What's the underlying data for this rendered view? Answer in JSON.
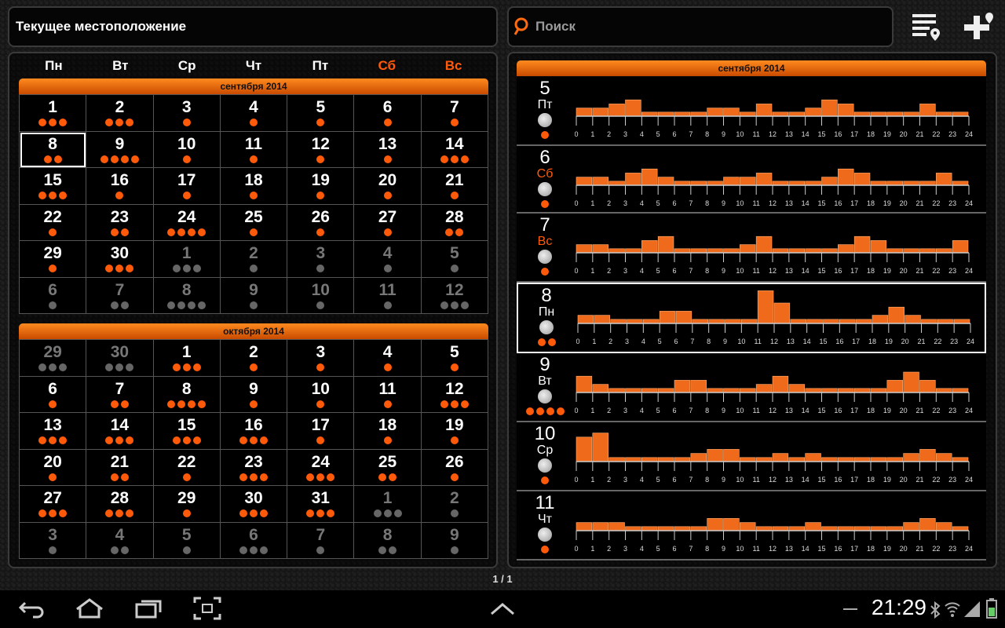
{
  "header": {
    "location_label": "Текущее местоположение",
    "search_placeholder": "Поиск"
  },
  "weekdays": [
    "Пн",
    "Вт",
    "Ср",
    "Чт",
    "Пт",
    "Сб",
    "Вс"
  ],
  "colors": {
    "accent": "#ff5a0a",
    "weekend": "#ff5a0a",
    "dim": "#777777"
  },
  "months": [
    {
      "title": "сентября 2014",
      "weeks": [
        [
          {
            "d": "1",
            "dots": 3
          },
          {
            "d": "2",
            "dots": 3
          },
          {
            "d": "3",
            "dots": 1
          },
          {
            "d": "4",
            "dots": 1
          },
          {
            "d": "5",
            "dots": 1
          },
          {
            "d": "6",
            "dots": 1
          },
          {
            "d": "7",
            "dots": 1
          }
        ],
        [
          {
            "d": "8",
            "dots": 2,
            "sel": true
          },
          {
            "d": "9",
            "dots": 4
          },
          {
            "d": "10",
            "dots": 1
          },
          {
            "d": "11",
            "dots": 1
          },
          {
            "d": "12",
            "dots": 1
          },
          {
            "d": "13",
            "dots": 1
          },
          {
            "d": "14",
            "dots": 3
          }
        ],
        [
          {
            "d": "15",
            "dots": 3
          },
          {
            "d": "16",
            "dots": 1
          },
          {
            "d": "17",
            "dots": 1
          },
          {
            "d": "18",
            "dots": 1
          },
          {
            "d": "19",
            "dots": 1
          },
          {
            "d": "20",
            "dots": 1
          },
          {
            "d": "21",
            "dots": 1
          }
        ],
        [
          {
            "d": "22",
            "dots": 1
          },
          {
            "d": "23",
            "dots": 2
          },
          {
            "d": "24",
            "dots": 4
          },
          {
            "d": "25",
            "dots": 1
          },
          {
            "d": "26",
            "dots": 1
          },
          {
            "d": "27",
            "dots": 1
          },
          {
            "d": "28",
            "dots": 2
          }
        ],
        [
          {
            "d": "29",
            "dots": 1
          },
          {
            "d": "30",
            "dots": 3
          },
          {
            "d": "1",
            "dots": 3,
            "dim": true
          },
          {
            "d": "2",
            "dots": 1,
            "dim": true
          },
          {
            "d": "3",
            "dots": 1,
            "dim": true
          },
          {
            "d": "4",
            "dots": 1,
            "dim": true
          },
          {
            "d": "5",
            "dots": 1,
            "dim": true
          }
        ],
        [
          {
            "d": "6",
            "dots": 1,
            "dim": true
          },
          {
            "d": "7",
            "dots": 2,
            "dim": true
          },
          {
            "d": "8",
            "dots": 4,
            "dim": true
          },
          {
            "d": "9",
            "dots": 1,
            "dim": true
          },
          {
            "d": "10",
            "dots": 1,
            "dim": true
          },
          {
            "d": "11",
            "dots": 1,
            "dim": true
          },
          {
            "d": "12",
            "dots": 3,
            "dim": true
          }
        ]
      ]
    },
    {
      "title": "октября 2014",
      "weeks": [
        [
          {
            "d": "29",
            "dots": 3,
            "dim": true
          },
          {
            "d": "30",
            "dots": 3,
            "dim": true
          },
          {
            "d": "1",
            "dots": 3
          },
          {
            "d": "2",
            "dots": 1
          },
          {
            "d": "3",
            "dots": 1
          },
          {
            "d": "4",
            "dots": 1
          },
          {
            "d": "5",
            "dots": 1
          }
        ],
        [
          {
            "d": "6",
            "dots": 1
          },
          {
            "d": "7",
            "dots": 2
          },
          {
            "d": "8",
            "dots": 4
          },
          {
            "d": "9",
            "dots": 1
          },
          {
            "d": "10",
            "dots": 1
          },
          {
            "d": "11",
            "dots": 1
          },
          {
            "d": "12",
            "dots": 3
          }
        ],
        [
          {
            "d": "13",
            "dots": 3
          },
          {
            "d": "14",
            "dots": 3
          },
          {
            "d": "15",
            "dots": 3
          },
          {
            "d": "16",
            "dots": 3
          },
          {
            "d": "17",
            "dots": 1
          },
          {
            "d": "18",
            "dots": 1
          },
          {
            "d": "19",
            "dots": 1
          }
        ],
        [
          {
            "d": "20",
            "dots": 1
          },
          {
            "d": "21",
            "dots": 2
          },
          {
            "d": "22",
            "dots": 1
          },
          {
            "d": "23",
            "dots": 3
          },
          {
            "d": "24",
            "dots": 3
          },
          {
            "d": "25",
            "dots": 2
          },
          {
            "d": "26",
            "dots": 1
          }
        ],
        [
          {
            "d": "27",
            "dots": 3
          },
          {
            "d": "28",
            "dots": 3
          },
          {
            "d": "29",
            "dots": 1
          },
          {
            "d": "30",
            "dots": 3
          },
          {
            "d": "31",
            "dots": 3
          },
          {
            "d": "1",
            "dots": 3,
            "dim": true
          },
          {
            "d": "2",
            "dots": 1,
            "dim": true
          }
        ],
        [
          {
            "d": "3",
            "dots": 1,
            "dim": true
          },
          {
            "d": "4",
            "dots": 2,
            "dim": true
          },
          {
            "d": "5",
            "dots": 1,
            "dim": true
          },
          {
            "d": "6",
            "dots": 3,
            "dim": true
          },
          {
            "d": "7",
            "dots": 1,
            "dim": true
          },
          {
            "d": "8",
            "dots": 2,
            "dim": true
          },
          {
            "d": "9",
            "dots": 1,
            "dim": true
          }
        ]
      ]
    }
  ],
  "week_title": "сентября 2014",
  "hour_ticks": [
    "0",
    "1",
    "2",
    "3",
    "4",
    "5",
    "6",
    "7",
    "8",
    "9",
    "10",
    "11",
    "12",
    "13",
    "14",
    "15",
    "16",
    "17",
    "18",
    "19",
    "20",
    "21",
    "22",
    "23",
    "24"
  ],
  "day_rows": [
    {
      "num": "5",
      "name": "Пт",
      "weekend": false,
      "dots": 1,
      "sel": false,
      "values": [
        2,
        2,
        3,
        4,
        1,
        1,
        1,
        1,
        2,
        2,
        1,
        3,
        1,
        1,
        2,
        4,
        3,
        1,
        1,
        1,
        1,
        3,
        1,
        1
      ]
    },
    {
      "num": "6",
      "name": "Сб",
      "weekend": true,
      "dots": 1,
      "sel": false,
      "values": [
        2,
        2,
        1,
        3,
        4,
        2,
        1,
        1,
        1,
        2,
        2,
        3,
        1,
        1,
        1,
        2,
        4,
        3,
        1,
        1,
        1,
        1,
        3,
        1
      ]
    },
    {
      "num": "7",
      "name": "Вс",
      "weekend": true,
      "dots": 1,
      "sel": false,
      "values": [
        2,
        2,
        1,
        1,
        3,
        4,
        1,
        1,
        1,
        1,
        2,
        4,
        1,
        1,
        1,
        1,
        2,
        4,
        3,
        1,
        1,
        1,
        1,
        3
      ]
    },
    {
      "num": "8",
      "name": "Пн",
      "weekend": false,
      "dots": 2,
      "sel": true,
      "values": [
        2,
        2,
        1,
        1,
        1,
        3,
        3,
        1,
        1,
        1,
        1,
        8,
        5,
        1,
        1,
        1,
        1,
        1,
        2,
        4,
        2,
        1,
        1,
        1
      ]
    },
    {
      "num": "9",
      "name": "Вт",
      "weekend": false,
      "dots": 4,
      "sel": true,
      "values": [
        4,
        2,
        1,
        1,
        1,
        1,
        3,
        3,
        1,
        1,
        1,
        2,
        4,
        2,
        1,
        1,
        1,
        1,
        1,
        3,
        5,
        3,
        1,
        1
      ]
    },
    {
      "num": "10",
      "name": "Ср",
      "weekend": false,
      "dots": 1,
      "sel": false,
      "values": [
        6,
        7,
        1,
        1,
        1,
        1,
        1,
        2,
        3,
        3,
        1,
        1,
        2,
        1,
        2,
        1,
        1,
        1,
        1,
        1,
        2,
        3,
        2,
        1
      ]
    },
    {
      "num": "11",
      "name": "Чт",
      "weekend": false,
      "dots": 1,
      "sel": false,
      "values": [
        2,
        2,
        2,
        1,
        1,
        1,
        1,
        1,
        3,
        3,
        2,
        1,
        1,
        1,
        2,
        1,
        1,
        1,
        1,
        1,
        2,
        3,
        2,
        1
      ]
    }
  ],
  "pager": "1 / 1",
  "status": {
    "time": "21:29"
  }
}
